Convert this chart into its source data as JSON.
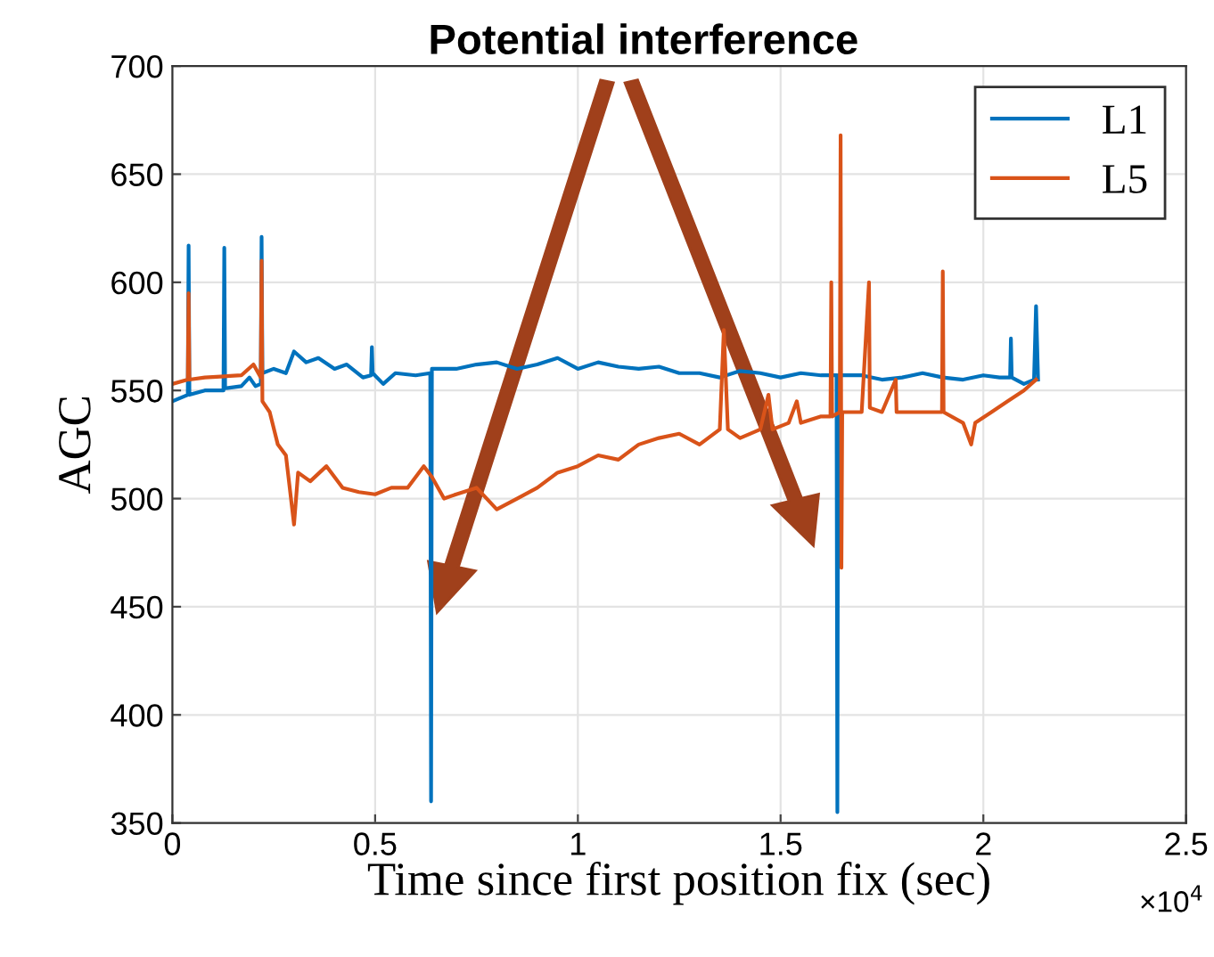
{
  "chart_data": {
    "type": "line",
    "xlabel": "Time since first position fix (sec)",
    "ylabel": "AGC",
    "annotations": [
      "Potential interference",
      "×10$^{4}$"
    ],
    "xlim": [
      0,
      2.5
    ],
    "xticks": [
      0,
      0.5,
      1,
      1.5,
      2,
      2.5
    ],
    "ylim": [
      350,
      700
    ],
    "yticks": [
      350,
      400,
      450,
      500,
      550,
      600,
      650,
      700
    ],
    "grid": true,
    "legend": "top right",
    "marker": "none",
    "line_style": "solid",
    "series": [
      {
        "name": "L1",
        "color": "#0072bd",
        "x": [
          0,
          0.038,
          0.04,
          0.042,
          0.08,
          0.126,
          0.128,
          0.13,
          0.17,
          0.19,
          0.205,
          0.218,
          0.22,
          0.222,
          0.25,
          0.28,
          0.3,
          0.33,
          0.36,
          0.4,
          0.43,
          0.47,
          0.49,
          0.492,
          0.494,
          0.52,
          0.55,
          0.6,
          0.636,
          0.638,
          0.64,
          0.7,
          0.75,
          0.8,
          0.85,
          0.9,
          0.95,
          1.0,
          1.05,
          1.1,
          1.15,
          1.2,
          1.25,
          1.3,
          1.35,
          1.4,
          1.45,
          1.5,
          1.55,
          1.6,
          1.638,
          1.64,
          1.642,
          1.7,
          1.75,
          1.8,
          1.85,
          1.9,
          1.95,
          2.0,
          2.04,
          2.066,
          2.068,
          2.07,
          2.1,
          2.125,
          2.13,
          2.135
        ],
        "values": [
          545,
          548,
          617,
          548,
          550,
          550,
          616,
          551,
          552,
          556,
          552,
          553,
          621,
          558,
          560,
          558,
          568,
          563,
          565,
          560,
          562,
          556,
          557,
          570,
          558,
          553,
          558,
          557,
          558,
          360,
          560,
          560,
          562,
          563,
          560,
          562,
          565,
          560,
          563,
          561,
          560,
          561,
          558,
          558,
          556,
          559,
          558,
          556,
          558,
          557,
          557,
          355,
          557,
          557,
          555,
          556,
          558,
          556,
          555,
          557,
          556,
          556,
          574,
          556,
          553,
          555,
          589,
          555
        ]
      },
      {
        "name": "L5",
        "color": "#d95319",
        "x": [
          0,
          0.038,
          0.04,
          0.042,
          0.08,
          0.17,
          0.2,
          0.218,
          0.22,
          0.222,
          0.24,
          0.26,
          0.28,
          0.3,
          0.31,
          0.34,
          0.38,
          0.42,
          0.46,
          0.5,
          0.54,
          0.58,
          0.62,
          0.64,
          0.67,
          0.7,
          0.75,
          0.8,
          0.85,
          0.9,
          0.95,
          1.0,
          1.05,
          1.1,
          1.15,
          1.2,
          1.25,
          1.3,
          1.35,
          1.36,
          1.37,
          1.4,
          1.45,
          1.47,
          1.48,
          1.52,
          1.54,
          1.55,
          1.6,
          1.623,
          1.625,
          1.627,
          1.646,
          1.648,
          1.65,
          1.652,
          1.7,
          1.718,
          1.72,
          1.75,
          1.784,
          1.786,
          1.85,
          1.898,
          1.9,
          1.902,
          1.95,
          1.97,
          1.98,
          2.02,
          2.06,
          2.1,
          2.13
        ],
        "values": [
          553,
          555,
          595,
          555,
          556,
          557,
          562,
          556,
          610,
          545,
          540,
          525,
          520,
          488,
          512,
          508,
          515,
          505,
          503,
          502,
          505,
          505,
          515,
          510,
          500,
          502,
          505,
          495,
          500,
          505,
          512,
          515,
          520,
          518,
          525,
          528,
          530,
          525,
          532,
          578,
          532,
          528,
          532,
          548,
          532,
          535,
          545,
          535,
          538,
          538,
          600,
          538,
          540,
          668,
          468,
          540,
          540,
          600,
          542,
          540,
          555,
          540,
          540,
          540,
          605,
          540,
          535,
          525,
          535,
          540,
          545,
          550,
          555
        ]
      }
    ]
  }
}
